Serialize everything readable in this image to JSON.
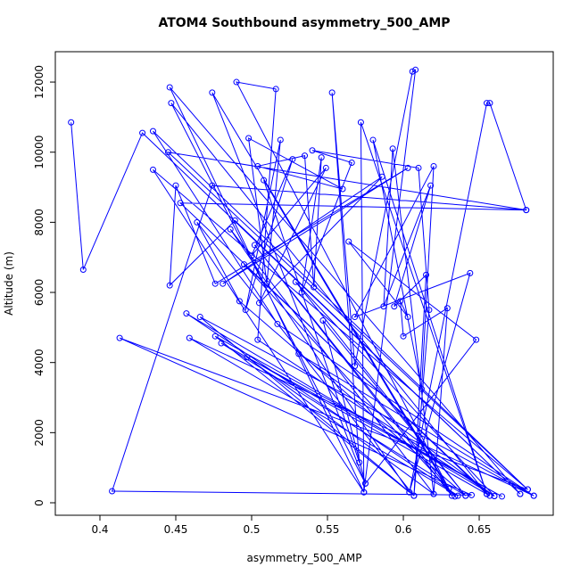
{
  "chart_data": {
    "type": "line",
    "title": "ATOM4 Southbound asymmetry_500_AMP",
    "x_label": "asymmetry_500_AMP",
    "y_label": "Altitude (m)",
    "color": "#0000ff",
    "markers": true,
    "xlim": [
      0.3706,
      0.6988
    ],
    "ylim": [
      -356,
      12866
    ],
    "xticks": [
      0.4,
      0.45,
      0.5,
      0.55,
      0.6,
      0.65
    ],
    "yticks": [
      0,
      2000,
      4000,
      6000,
      8000,
      10000,
      12000
    ],
    "x": [
      0.381,
      0.389,
      0.428,
      0.677,
      0.446,
      0.574,
      0.435,
      0.682,
      0.413,
      0.645,
      0.408,
      0.474,
      0.681,
      0.453,
      0.655,
      0.447,
      0.575,
      0.474,
      0.63,
      0.49,
      0.516,
      0.504,
      0.66,
      0.457,
      0.636,
      0.459,
      0.686,
      0.466,
      0.607,
      0.464,
      0.492,
      0.641,
      0.48,
      0.665,
      0.476,
      0.604,
      0.486,
      0.62,
      0.497,
      0.657,
      0.495,
      0.634,
      0.502,
      0.632,
      0.508,
      0.571,
      0.553,
      0.568,
      0.606,
      0.608,
      0.574,
      0.572,
      0.655,
      0.58,
      0.612,
      0.62,
      0.568,
      0.644,
      0.604,
      0.655,
      0.657,
      0.681,
      0.445,
      0.682,
      0.435,
      0.517,
      0.686,
      0.531,
      0.66,
      0.529,
      0.641,
      0.547,
      0.575,
      0.648,
      0.564,
      0.603,
      0.598,
      0.6,
      0.629,
      0.62,
      0.593,
      0.587,
      0.618,
      0.594,
      0.615,
      0.607,
      0.617,
      0.61,
      0.54,
      0.566,
      0.533,
      0.546,
      0.541,
      0.535,
      0.504,
      0.56,
      0.498,
      0.51,
      0.519,
      0.496,
      0.527,
      0.5,
      0.549,
      0.505,
      0.586,
      0.481,
      0.603,
      0.476,
      0.45,
      0.446,
      0.489,
      0.677
    ],
    "y": [
      10850,
      6650,
      10550,
      250,
      11850,
      300,
      9500,
      380,
      4700,
      220,
      330,
      9050,
      8350,
      8550,
      250,
      11400,
      550,
      11700,
      400,
      12000,
      11800,
      4650,
      190,
      5400,
      200,
      4700,
      200,
      5300,
      200,
      8000,
      5750,
      200,
      4550,
      180,
      4750,
      300,
      7800,
      250,
      4150,
      200,
      6800,
      180,
      7350,
      200,
      9200,
      1150,
      11700,
      3900,
      12300,
      12350,
      300,
      10850,
      250,
      10350,
      3250,
      9600,
      5300,
      6550,
      300,
      11400,
      11400,
      8350,
      10000,
      380,
      10600,
      5100,
      200,
      4250,
      190,
      6300,
      200,
      5200,
      550,
      4650,
      7450,
      5300,
      5750,
      4750,
      5550,
      250,
      10100,
      5600,
      9050,
      5600,
      6500,
      200,
      5500,
      9550,
      10050,
      9700,
      6000,
      9850,
      6150,
      9900,
      9600,
      8950,
      10400,
      6250,
      10350,
      5500,
      9800,
      7050,
      9550,
      5700,
      9300,
      6250,
      9550,
      6250,
      9050,
      6200,
      8050,
      250
    ]
  }
}
